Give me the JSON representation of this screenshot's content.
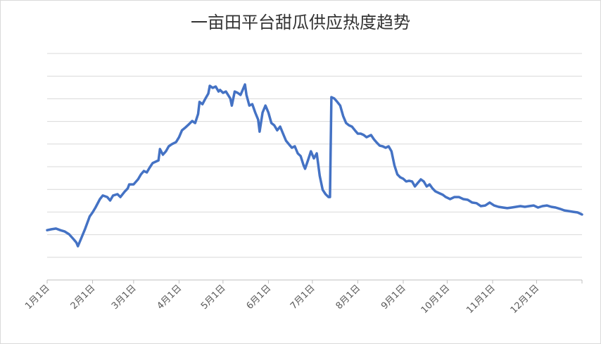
{
  "chart_data": {
    "type": "line",
    "title": "一亩田平台甜瓜供应热度趋势",
    "x": [
      0,
      3,
      6,
      9,
      12,
      15,
      18,
      20,
      21,
      23,
      26,
      29,
      31,
      33,
      36,
      38,
      41,
      43,
      45,
      48,
      50,
      53,
      55,
      56,
      59,
      62,
      64,
      66,
      68,
      70,
      72,
      74,
      76,
      77,
      79,
      81,
      83,
      85,
      88,
      90,
      92,
      94,
      96,
      99,
      101,
      103,
      104,
      106,
      108,
      110,
      111,
      113,
      115,
      117,
      118,
      120,
      122,
      125,
      126,
      128,
      130,
      132,
      133,
      135,
      136,
      138,
      140,
      142,
      144,
      145,
      147,
      149,
      151,
      153,
      155,
      157,
      159,
      161,
      163,
      165,
      167,
      169,
      171,
      173,
      175,
      176,
      178,
      180,
      182,
      184,
      186,
      188,
      190,
      192,
      193,
      194,
      196,
      198,
      200,
      202,
      204,
      206,
      208,
      210,
      212,
      214,
      216,
      218,
      221,
      223,
      225,
      227,
      229,
      231,
      233,
      235,
      237,
      239,
      241,
      243,
      245,
      247,
      249,
      251,
      253,
      255,
      257,
      259,
      261,
      263,
      265,
      268,
      270,
      272,
      275,
      278,
      281,
      284,
      287,
      290,
      293,
      296,
      299,
      302,
      305,
      308,
      311,
      314,
      317,
      320,
      323,
      326,
      329,
      332,
      335,
      338,
      341,
      344,
      347,
      350,
      353,
      356,
      359,
      362,
      365
    ],
    "series": [
      {
        "color": "#4472c4",
        "values": [
          2.2,
          2.24,
          2.27,
          2.2,
          2.14,
          2.02,
          1.8,
          1.65,
          1.49,
          1.8,
          2.27,
          2.8,
          2.98,
          3.2,
          3.57,
          3.73,
          3.66,
          3.51,
          3.73,
          3.79,
          3.66,
          3.91,
          4.04,
          4.22,
          4.22,
          4.44,
          4.66,
          4.81,
          4.75,
          4.97,
          5.16,
          5.22,
          5.28,
          5.78,
          5.53,
          5.68,
          5.9,
          5.99,
          6.09,
          6.3,
          6.61,
          6.71,
          6.83,
          7.02,
          6.93,
          7.33,
          7.86,
          7.76,
          8.01,
          8.23,
          8.57,
          8.48,
          8.54,
          8.32,
          8.39,
          8.26,
          8.32,
          8.01,
          7.7,
          8.32,
          8.26,
          8.17,
          8.32,
          8.63,
          8.17,
          7.7,
          7.76,
          7.39,
          7.08,
          6.55,
          7.39,
          7.7,
          7.39,
          6.93,
          6.83,
          6.61,
          6.77,
          6.46,
          6.15,
          5.99,
          5.84,
          5.9,
          5.59,
          5.47,
          5.06,
          4.91,
          5.28,
          5.68,
          5.37,
          5.59,
          4.6,
          3.98,
          3.79,
          3.66,
          3.66,
          8.07,
          8.01,
          7.86,
          7.7,
          7.24,
          6.93,
          6.83,
          6.77,
          6.61,
          6.46,
          6.46,
          6.4,
          6.3,
          6.4,
          6.21,
          6.06,
          5.93,
          5.9,
          5.84,
          5.9,
          5.68,
          5.06,
          4.66,
          4.53,
          4.47,
          4.35,
          4.38,
          4.35,
          4.13,
          4.29,
          4.44,
          4.35,
          4.13,
          4.22,
          4.04,
          3.91,
          3.82,
          3.76,
          3.66,
          3.57,
          3.66,
          3.66,
          3.57,
          3.54,
          3.42,
          3.39,
          3.26,
          3.29,
          3.42,
          3.29,
          3.23,
          3.2,
          3.17,
          3.2,
          3.23,
          3.26,
          3.23,
          3.26,
          3.29,
          3.2,
          3.26,
          3.29,
          3.23,
          3.2,
          3.14,
          3.07,
          3.04,
          3.01,
          2.98,
          2.89
        ]
      }
    ],
    "xlim": [
      0,
      365
    ],
    "xticks": [
      {
        "value": 0,
        "label": "1月1日"
      },
      {
        "value": 31,
        "label": "2月1日"
      },
      {
        "value": 59,
        "label": "3月1日"
      },
      {
        "value": 90,
        "label": "4月1日"
      },
      {
        "value": 120,
        "label": "5月1日"
      },
      {
        "value": 151,
        "label": "6月1日"
      },
      {
        "value": 181,
        "label": "7月1日"
      },
      {
        "value": 212,
        "label": "8月1日"
      },
      {
        "value": 243,
        "label": "9月1日"
      },
      {
        "value": 273,
        "label": "10月1日"
      },
      {
        "value": 304,
        "label": "11月1日"
      },
      {
        "value": 334,
        "label": "12月1日"
      }
    ],
    "ylim": [
      0,
      10
    ],
    "yticks": [
      0,
      1,
      2,
      3,
      4,
      5,
      6,
      7,
      8,
      9,
      10
    ],
    "grid": true
  }
}
